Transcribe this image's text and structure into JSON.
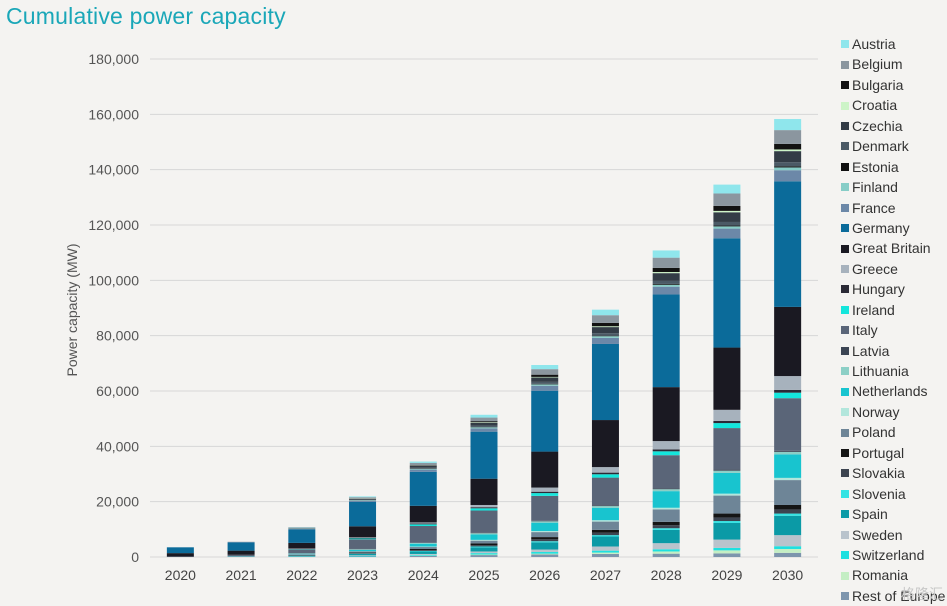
{
  "title": "Cumulative power capacity",
  "watermark": "格隆汇",
  "chart_data": {
    "type": "bar",
    "stacked": true,
    "title": "Cumulative power capacity",
    "xlabel": "",
    "ylabel": "Power capacity (MW)",
    "ylim": [
      0,
      180000
    ],
    "yticks": [
      0,
      20000,
      40000,
      60000,
      80000,
      100000,
      120000,
      140000,
      160000,
      180000
    ],
    "ytick_labels": [
      "0",
      "20,000",
      "40,000",
      "60,000",
      "80,000",
      "100,000",
      "120,000",
      "140,000",
      "160,000",
      "180,000"
    ],
    "grid": true,
    "legend_position": "right",
    "categories": [
      "2020",
      "2021",
      "2022",
      "2023",
      "2024",
      "2025",
      "2026",
      "2027",
      "2028",
      "2029",
      "2030"
    ],
    "series": [
      {
        "name": "Rest of Europe",
        "color": "#7d95ad",
        "values": [
          0,
          0,
          0,
          200,
          400,
          700,
          900,
          1100,
          1200,
          1300,
          1500
        ]
      },
      {
        "name": "Romania",
        "color": "#c4eec4",
        "values": [
          0,
          0,
          0,
          0,
          100,
          200,
          300,
          500,
          800,
          1100,
          1400
        ]
      },
      {
        "name": "Switzerland",
        "color": "#1ee0e0",
        "values": [
          0,
          0,
          100,
          200,
          300,
          500,
          600,
          700,
          800,
          900,
          1000
        ]
      },
      {
        "name": "Sweden",
        "color": "#b9c3cc",
        "values": [
          0,
          0,
          100,
          200,
          300,
          600,
          900,
          1500,
          2200,
          3000,
          4000
        ]
      },
      {
        "name": "Spain",
        "color": "#0b9aa6",
        "values": [
          0,
          100,
          300,
          500,
          900,
          1500,
          2600,
          3600,
          4800,
          6000,
          7000
        ]
      },
      {
        "name": "Slovenia",
        "color": "#34e3e3",
        "values": [
          0,
          0,
          0,
          100,
          200,
          300,
          400,
          500,
          600,
          700,
          800
        ]
      },
      {
        "name": "Slovakia",
        "color": "#3d4450",
        "values": [
          0,
          0,
          100,
          200,
          300,
          500,
          700,
          900,
          1100,
          1300,
          1500
        ]
      },
      {
        "name": "Portugal",
        "color": "#151515",
        "values": [
          0,
          0,
          100,
          200,
          400,
          600,
          800,
          1000,
          1200,
          1400,
          1600
        ]
      },
      {
        "name": "Poland",
        "color": "#6e8597",
        "values": [
          0,
          100,
          200,
          400,
          700,
          1000,
          1800,
          3000,
          4500,
          6500,
          9000
        ]
      },
      {
        "name": "Norway",
        "color": "#b2e6dc",
        "values": [
          0,
          0,
          100,
          100,
          200,
          300,
          400,
          500,
          600,
          700,
          800
        ]
      },
      {
        "name": "Netherlands",
        "color": "#18c4cf",
        "values": [
          0,
          100,
          200,
          500,
          1000,
          2000,
          3000,
          4500,
          6000,
          7500,
          8500
        ]
      },
      {
        "name": "Lithuania",
        "color": "#8ccfc6",
        "values": [
          0,
          0,
          100,
          200,
          300,
          400,
          500,
          600,
          700,
          800,
          900
        ]
      },
      {
        "name": "Latvia",
        "color": "#3b4453",
        "values": [
          0,
          0,
          0,
          100,
          100,
          200,
          200,
          300,
          300,
          400,
          400
        ]
      },
      {
        "name": "Italy",
        "color": "#5a6578",
        "values": [
          200,
          500,
          1500,
          3500,
          6000,
          8000,
          9000,
          10000,
          12000,
          15000,
          19000
        ]
      },
      {
        "name": "Ireland",
        "color": "#14e6dc",
        "values": [
          0,
          0,
          100,
          300,
          600,
          800,
          1000,
          1200,
          1400,
          1800,
          2000
        ]
      },
      {
        "name": "Hungary",
        "color": "#2a2a36",
        "values": [
          0,
          0,
          100,
          200,
          300,
          400,
          500,
          600,
          700,
          800,
          1000
        ]
      },
      {
        "name": "Greece",
        "color": "#a7b2bd",
        "values": [
          0,
          0,
          100,
          200,
          400,
          800,
          1500,
          2000,
          3000,
          4000,
          5000
        ]
      },
      {
        "name": "Great Britain",
        "color": "#1a1922",
        "values": [
          1200,
          1500,
          2000,
          4000,
          6000,
          9500,
          13000,
          17000,
          19500,
          22500,
          25000
        ]
      },
      {
        "name": "Germany",
        "color": "#0b6b9a",
        "values": [
          2100,
          3000,
          4900,
          8800,
          12300,
          17000,
          22000,
          27500,
          33500,
          39500,
          45400
        ]
      },
      {
        "name": "France",
        "color": "#6c88a8",
        "values": [
          0,
          100,
          200,
          400,
          800,
          1200,
          1800,
          2200,
          2800,
          3500,
          4000
        ]
      },
      {
        "name": "Finland",
        "color": "#87cdc7",
        "values": [
          0,
          0,
          100,
          200,
          300,
          400,
          500,
          600,
          700,
          800,
          1000
        ]
      },
      {
        "name": "Estonia",
        "color": "#101010",
        "values": [
          0,
          0,
          0,
          0,
          100,
          100,
          200,
          200,
          300,
          300,
          400
        ]
      },
      {
        "name": "Denmark",
        "color": "#4b5a66",
        "values": [
          0,
          0,
          100,
          200,
          300,
          500,
          700,
          900,
          1100,
          1300,
          1500
        ]
      },
      {
        "name": "Czechia",
        "color": "#333c46",
        "values": [
          0,
          0,
          100,
          300,
          600,
          1000,
          1600,
          2200,
          2800,
          3500,
          4000
        ]
      },
      {
        "name": "Croatia",
        "color": "#cdf4c8",
        "values": [
          0,
          0,
          0,
          100,
          100,
          200,
          200,
          300,
          400,
          500,
          600
        ]
      },
      {
        "name": "Bulgaria",
        "color": "#121212",
        "values": [
          0,
          0,
          0,
          100,
          200,
          400,
          800,
          1200,
          1500,
          1800,
          2000
        ]
      },
      {
        "name": "Belgium",
        "color": "#8b969f",
        "values": [
          0,
          100,
          200,
          400,
          800,
          1300,
          2000,
          2800,
          3700,
          4500,
          5000
        ]
      },
      {
        "name": "Austria",
        "color": "#8fe6ec",
        "values": [
          0,
          0,
          100,
          300,
          500,
          1000,
          1500,
          2000,
          2600,
          3200,
          4000
        ]
      }
    ],
    "legend_items": [
      "Austria",
      "Belgium",
      "Bulgaria",
      "Croatia",
      "Czechia",
      "Denmark",
      "Estonia",
      "Finland",
      "France",
      "Germany",
      "Great Britain",
      "Greece",
      "Hungary",
      "Ireland",
      "Italy",
      "Latvia",
      "Lithuania",
      "Netherlands",
      "Norway",
      "Poland",
      "Portugal",
      "Slovakia",
      "Slovenia",
      "Spain",
      "Sweden",
      "Switzerland",
      "Romania",
      "Rest of Europe"
    ]
  }
}
